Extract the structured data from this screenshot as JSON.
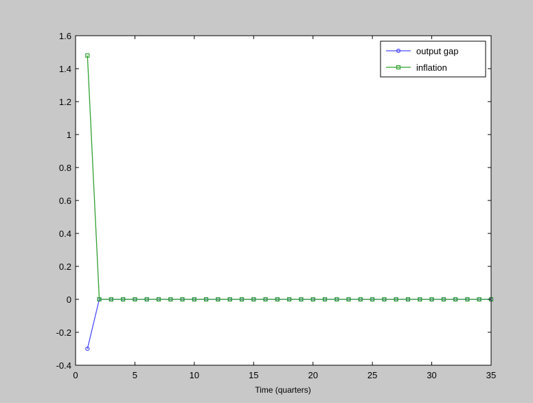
{
  "figure": {
    "background": "#c8c8c8",
    "axes_background": "#ffffff"
  },
  "chart_data": {
    "type": "line",
    "xlabel": "Time (quarters)",
    "ylabel": "",
    "xlim": [
      0,
      35
    ],
    "ylim": [
      -0.4,
      1.6
    ],
    "xticks": [
      0,
      5,
      10,
      15,
      20,
      25,
      30,
      35
    ],
    "xtick_labels": [
      "0",
      "5",
      "10",
      "15",
      "20",
      "25",
      "30",
      "35"
    ],
    "yticks": [
      -0.4,
      -0.2,
      0,
      0.2,
      0.4,
      0.6,
      0.8,
      1,
      1.2,
      1.4,
      1.6
    ],
    "ytick_labels": [
      "-0.4",
      "-0.2",
      "0",
      "0.2",
      "0.4",
      "0.6",
      "0.8",
      "1",
      "1.2",
      "1.4",
      "1.6"
    ],
    "grid": false,
    "legend_position": "top-right",
    "x": [
      1,
      2,
      3,
      4,
      5,
      6,
      7,
      8,
      9,
      10,
      11,
      12,
      13,
      14,
      15,
      16,
      17,
      18,
      19,
      20,
      21,
      22,
      23,
      24,
      25,
      26,
      27,
      28,
      29,
      30,
      31,
      32,
      33,
      34,
      35
    ],
    "series": [
      {
        "name": "output gap",
        "color": "#4b4bff",
        "marker": "circle",
        "values": [
          -0.3,
          0,
          0,
          0,
          0,
          0,
          0,
          0,
          0,
          0,
          0,
          0,
          0,
          0,
          0,
          0,
          0,
          0,
          0,
          0,
          0,
          0,
          0,
          0,
          0,
          0,
          0,
          0,
          0,
          0,
          0,
          0,
          0,
          0,
          0
        ]
      },
      {
        "name": "inflation",
        "color": "#2fa02f",
        "marker": "square",
        "values": [
          1.48,
          0,
          0,
          0,
          0,
          0,
          0,
          0,
          0,
          0,
          0,
          0,
          0,
          0,
          0,
          0,
          0,
          0,
          0,
          0,
          0,
          0,
          0,
          0,
          0,
          0,
          0,
          0,
          0,
          0,
          0,
          0,
          0,
          0,
          0
        ]
      }
    ]
  }
}
